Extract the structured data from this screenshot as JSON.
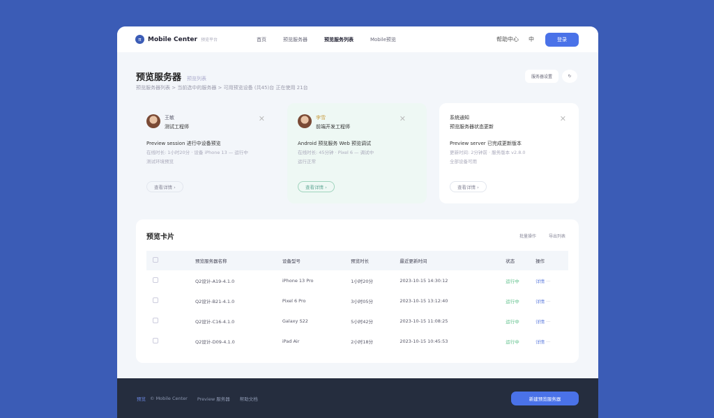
{
  "header": {
    "logo": "π",
    "brand": "Mobile Center",
    "brand_sub": "预览平台",
    "nav": [
      "首页",
      "预览服务器",
      "预览服务列表",
      "Mobile预览"
    ],
    "nav_active": 2,
    "link": "帮助中心",
    "user": "中",
    "button": "登录"
  },
  "page": {
    "title": "预览服务器",
    "title_tag": "预览列表",
    "subtitle": "预览服务器列表 > 当前选中的服务器 > 可用预览设备 (共45)台 正在使用 21台",
    "btn_settings": "服务器设置",
    "btn_refresh": "↻"
  },
  "cards": [
    {
      "name": "王敏",
      "role": "测试工程师",
      "title": "Preview session 进行中设备预览",
      "desc": "在线时长: 1小时20分 · 设备 iPhone 13 — 运行中",
      "extra": "测试环境预览",
      "button": "查看详情 ›"
    },
    {
      "name": "李雪",
      "role": "前端开发工程师",
      "title": "Android 预览服务 Web 预览调试",
      "desc": "在线时长: 45分钟 · Pixel 6 — 调试中",
      "extra": "运行正常",
      "button": "查看详情 ›"
    },
    {
      "name": "系统通知",
      "role": "预览服务器状态更新",
      "title": "Preview server 已完成更新版本",
      "desc": "更新时间: 2分钟前 · 服务版本 v2.8.0",
      "extra": "全部设备可用",
      "button": "查看详情 ›"
    }
  ],
  "table": {
    "title": "预览卡片",
    "actions": [
      "批量操作",
      "导出列表"
    ],
    "columns": [
      "",
      "预览服务器名称",
      "设备型号",
      "预览时长",
      "最近更新时间",
      "状态",
      "操作"
    ],
    "rows": [
      [
        "",
        "Q2设计-A19-4.1.0",
        "iPhone 13 Pro",
        "1小时20分",
        "2023-10-15 14:30:12",
        "运行中",
        "详情"
      ],
      [
        "",
        "Q2设计-B21-4.1.0",
        "Pixel 6 Pro",
        "3小时05分",
        "2023-10-15 13:12:40",
        "运行中",
        "详情"
      ],
      [
        "",
        "Q2设计-C16-4.1.0",
        "Galaxy S22",
        "5小时42分",
        "2023-10-15 11:08:25",
        "运行中",
        "详情"
      ],
      [
        "",
        "Q2设计-D09-4.1.0",
        "iPad Air",
        "2小时18分",
        "2023-10-15 10:45:53",
        "运行中",
        "详情"
      ]
    ],
    "more": "···"
  },
  "footer": {
    "tag": "预览",
    "links": [
      "© Mobile Center",
      "Preview 服务器",
      "帮助文档"
    ],
    "button": "新建预览服务器"
  },
  "colors": {
    "background": "#3b5cb6",
    "accent": "#4a72e8",
    "footer": "#252d3e",
    "status": "#5cc08a"
  }
}
